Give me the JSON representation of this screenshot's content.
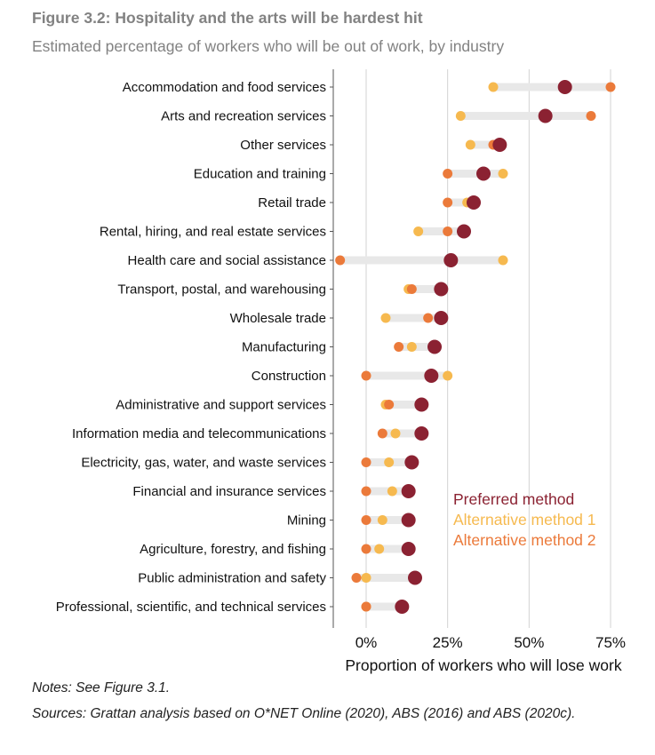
{
  "title": "Figure 3.2: Hospitality and the arts will be hardest hit",
  "subtitle": "Estimated percentage of workers who will be out of work, by industry",
  "notes": "Notes: See Figure 3.1.",
  "sources": "Sources: Grattan analysis based on O*NET Online (2020), ABS (2016) and ABS (2020c).",
  "colors": {
    "preferred": "#8B2232",
    "alt1": "#F6B94F",
    "alt2": "#EB7A3A",
    "range": "#E8E8E8",
    "grid": "#D3D3D3",
    "axis": "#555555"
  },
  "chart_data": {
    "type": "dot-range",
    "title": "Figure 3.2: Hospitality and the arts will be hardest hit",
    "xlabel": "Proportion of workers who will lose work",
    "ylabel": "",
    "xlim": [
      -10,
      80
    ],
    "xticks": [
      0,
      25,
      50,
      75
    ],
    "xtick_labels": [
      "0%",
      "25%",
      "50%",
      "75%"
    ],
    "grid": true,
    "legend_position": "bottom-right",
    "categories": [
      "Accommodation and food services",
      "Arts and recreation services",
      "Other services",
      "Education and training",
      "Retail trade",
      "Rental, hiring, and real estate services",
      "Health care and social assistance",
      "Transport, postal, and warehousing",
      "Wholesale trade",
      "Manufacturing",
      "Construction",
      "Administrative and support services",
      "Information media and telecommunications",
      "Electricity, gas, water, and waste services",
      "Financial and insurance services",
      "Mining",
      "Agriculture, forestry, and fishing",
      "Public administration and safety",
      "Professional, scientific, and technical services"
    ],
    "series": [
      {
        "name": "Preferred method",
        "key": "preferred",
        "values": [
          61,
          55,
          41,
          36,
          33,
          30,
          26,
          23,
          23,
          21,
          20,
          17,
          17,
          14,
          13,
          13,
          13,
          15,
          11
        ]
      },
      {
        "name": "Alternative method 1",
        "key": "alt1",
        "values": [
          39,
          29,
          32,
          42,
          31,
          16,
          42,
          13,
          6,
          14,
          25,
          6,
          9,
          7,
          8,
          5,
          4,
          0,
          0
        ]
      },
      {
        "name": "Alternative method 2",
        "key": "alt2",
        "values": [
          75,
          69,
          39,
          25,
          25,
          25,
          -8,
          14,
          19,
          10,
          0,
          7,
          5,
          0,
          0,
          0,
          0,
          -3,
          0
        ]
      }
    ]
  }
}
